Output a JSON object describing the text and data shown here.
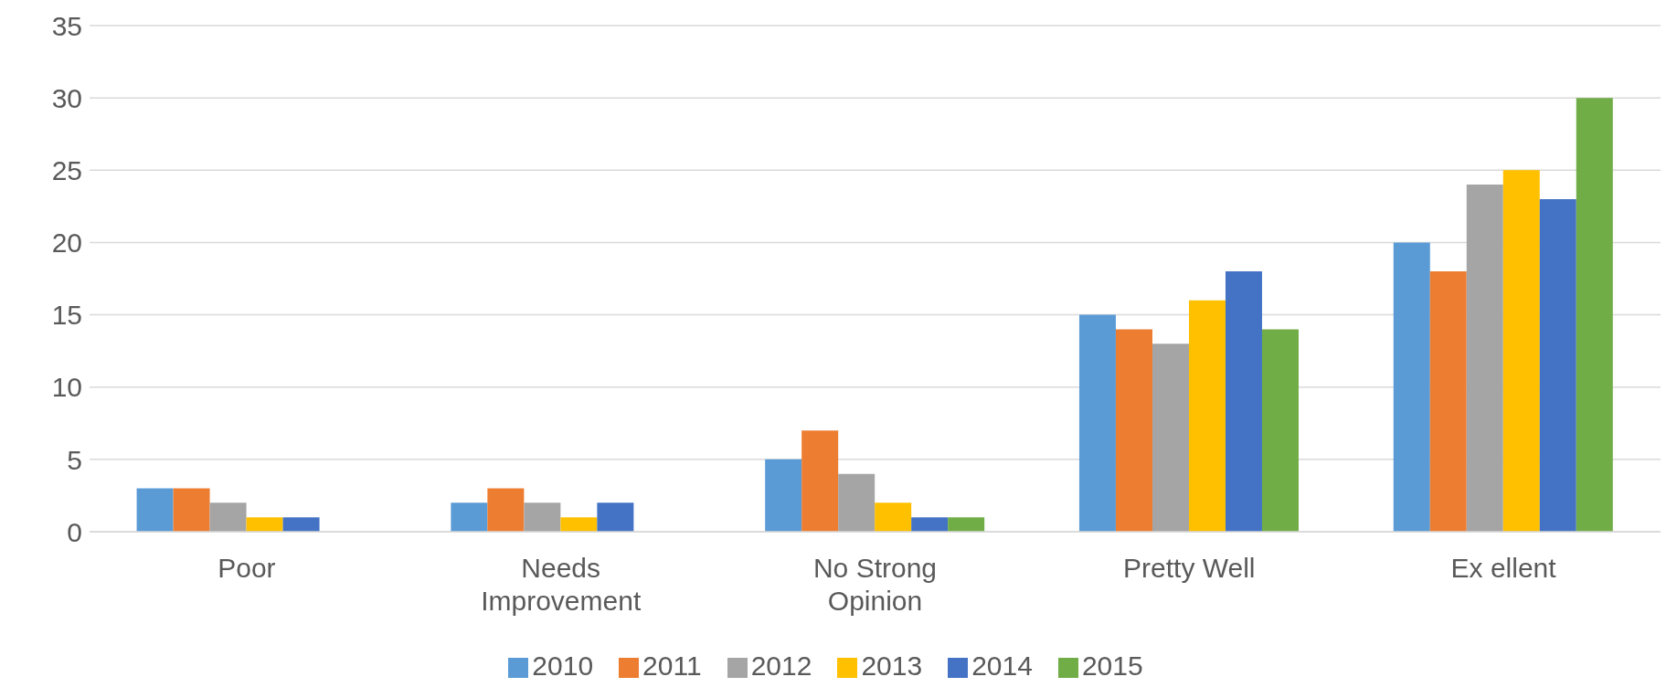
{
  "chart_data": {
    "type": "bar",
    "categories": [
      "Poor",
      "Needs Improvement",
      "No Strong Opinion",
      "Pretty Well",
      "Ex ellent"
    ],
    "series": [
      {
        "name": "2010",
        "color": "#5b9bd5",
        "values": [
          3,
          2,
          5,
          15,
          20
        ]
      },
      {
        "name": "2011",
        "color": "#ed7d31",
        "values": [
          3,
          3,
          7,
          14,
          18
        ]
      },
      {
        "name": "2012",
        "color": "#a5a5a5",
        "values": [
          2,
          2,
          4,
          13,
          24
        ]
      },
      {
        "name": "2013",
        "color": "#ffc000",
        "values": [
          1,
          1,
          2,
          16,
          25
        ]
      },
      {
        "name": "2014",
        "color": "#4472c4",
        "values": [
          1,
          2,
          1,
          18,
          23
        ]
      },
      {
        "name": "2015",
        "color": "#70ad47",
        "values": [
          0,
          0,
          1,
          14,
          30
        ]
      }
    ],
    "ylim": [
      0,
      35
    ],
    "yticks": [
      0,
      5,
      10,
      15,
      20,
      25,
      30,
      35
    ],
    "grid": "y",
    "legend": "bottom"
  }
}
